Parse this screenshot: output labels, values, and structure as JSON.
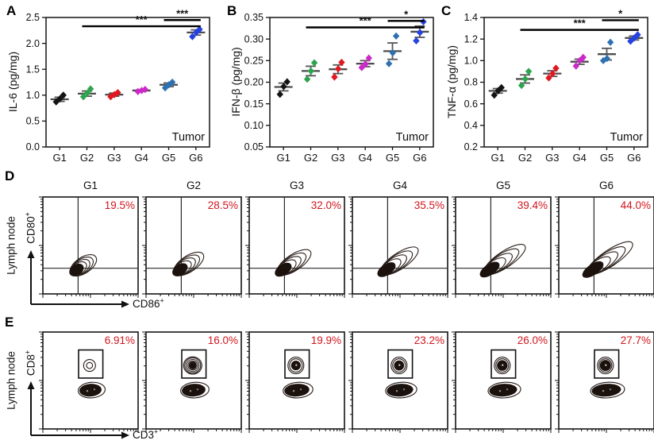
{
  "colors": {
    "percentage_red": "#d1151c",
    "sig_bar": "#000000",
    "mean_line": "#565656",
    "frame": "#141414"
  },
  "chart_data": [
    {
      "type": "scatter",
      "panel_letter": "A",
      "ylabel": "IL-6 (pg/mg)",
      "annotation": "Tumor",
      "categories": [
        "G1",
        "G2",
        "G3",
        "G4",
        "G5",
        "G6"
      ],
      "ylim": [
        0,
        2.5
      ],
      "yticks": [
        "0.0",
        "0.5",
        "1.0",
        "1.5",
        "2.0",
        "2.5"
      ],
      "series": [
        {
          "name": "G1",
          "color": "#141414",
          "points": [
            0.87,
            0.93,
            1.0
          ],
          "mean": 0.92,
          "sem": 0.04
        },
        {
          "name": "G2",
          "color": "#2ca44e",
          "points": [
            0.97,
            1.04,
            1.12
          ],
          "mean": 1.03,
          "sem": 0.05
        },
        {
          "name": "G3",
          "color": "#e0181f",
          "points": [
            0.97,
            1.01,
            1.05
          ],
          "mean": 1.01,
          "sem": 0.03
        },
        {
          "name": "G4",
          "color": "#cc29c9",
          "points": [
            1.07,
            1.09,
            1.11
          ],
          "mean": 1.09,
          "sem": 0.015
        },
        {
          "name": "G5",
          "color": "#2e71b3",
          "points": [
            1.14,
            1.2,
            1.25
          ],
          "mean": 1.2,
          "sem": 0.035
        },
        {
          "name": "G6",
          "color": "#2541e0",
          "points": [
            2.13,
            2.21,
            2.27
          ],
          "mean": 2.21,
          "sem": 0.05
        }
      ],
      "significance": [
        {
          "from": "G2",
          "to": "G6",
          "label": "***",
          "y": 2.33
        },
        {
          "from": "G5",
          "to": "G6",
          "label": "***",
          "y": 2.45
        }
      ]
    },
    {
      "type": "scatter",
      "panel_letter": "B",
      "ylabel": "IFN-β (pg/mg)",
      "annotation": "Tumor",
      "categories": [
        "G1",
        "G2",
        "G3",
        "G4",
        "G5",
        "G6"
      ],
      "ylim": [
        0.05,
        0.35
      ],
      "yticks": [
        "0.05",
        "0.10",
        "0.15",
        "0.20",
        "0.25",
        "0.30",
        "0.35"
      ],
      "series": [
        {
          "name": "G1",
          "color": "#141414",
          "points": [
            0.172,
            0.19,
            0.201
          ],
          "mean": 0.189,
          "sem": 0.009
        },
        {
          "name": "G2",
          "color": "#2ca44e",
          "points": [
            0.207,
            0.226,
            0.245
          ],
          "mean": 0.226,
          "sem": 0.011
        },
        {
          "name": "G3",
          "color": "#e0181f",
          "points": [
            0.212,
            0.231,
            0.246
          ],
          "mean": 0.23,
          "sem": 0.01
        },
        {
          "name": "G4",
          "color": "#cc29c9",
          "points": [
            0.234,
            0.242,
            0.256
          ],
          "mean": 0.243,
          "sem": 0.007
        },
        {
          "name": "G5",
          "color": "#2e71b3",
          "points": [
            0.243,
            0.268,
            0.307
          ],
          "mean": 0.272,
          "sem": 0.019
        },
        {
          "name": "G6",
          "color": "#2541e0",
          "points": [
            0.296,
            0.315,
            0.34
          ],
          "mean": 0.317,
          "sem": 0.013
        }
      ],
      "significance": [
        {
          "from": "G2",
          "to": "G6",
          "label": "***",
          "y": 0.327
        },
        {
          "from": "G5",
          "to": "G6",
          "label": "*",
          "y": 0.342
        }
      ]
    },
    {
      "type": "scatter",
      "panel_letter": "C",
      "ylabel": "TNF-α (pg/mg)",
      "annotation": "Tumor",
      "categories": [
        "G1",
        "G2",
        "G3",
        "G4",
        "G5",
        "G6"
      ],
      "ylim": [
        0.2,
        1.4
      ],
      "yticks": [
        "0.2",
        "0.4",
        "0.6",
        "0.8",
        "1.0",
        "1.2",
        "1.4"
      ],
      "series": [
        {
          "name": "G1",
          "color": "#141414",
          "points": [
            0.68,
            0.72,
            0.75
          ],
          "mean": 0.72,
          "sem": 0.021
        },
        {
          "name": "G2",
          "color": "#2ca44e",
          "points": [
            0.77,
            0.83,
            0.9
          ],
          "mean": 0.83,
          "sem": 0.038
        },
        {
          "name": "G3",
          "color": "#e0181f",
          "points": [
            0.84,
            0.88,
            0.93
          ],
          "mean": 0.88,
          "sem": 0.026
        },
        {
          "name": "G4",
          "color": "#cc29c9",
          "points": [
            0.95,
            1.0,
            1.03
          ],
          "mean": 0.99,
          "sem": 0.024
        },
        {
          "name": "G5",
          "color": "#2e71b3",
          "points": [
            1.0,
            1.02,
            1.17
          ],
          "mean": 1.06,
          "sem": 0.054
        },
        {
          "name": "G6",
          "color": "#2541e0",
          "points": [
            1.18,
            1.21,
            1.24
          ],
          "mean": 1.21,
          "sem": 0.018
        }
      ],
      "significance": [
        {
          "from": "G2",
          "to": "G6",
          "label": "***",
          "y": 1.285
        },
        {
          "from": "G5",
          "to": "G6",
          "label": "*",
          "y": 1.375
        }
      ]
    }
  ],
  "flow_rows": [
    {
      "panel_letter": "D",
      "tissue_label": "Lymph node",
      "y_axis_label": "CD80",
      "y_axis_sup": "+",
      "x_axis_label": "CD86",
      "x_axis_sup": "+",
      "plots": [
        {
          "title": "G1",
          "percentage": "19.5%"
        },
        {
          "title": "G2",
          "percentage": "28.5%"
        },
        {
          "title": "G3",
          "percentage": "32.0%"
        },
        {
          "title": "G4",
          "percentage": "35.5%"
        },
        {
          "title": "G5",
          "percentage": "39.4%"
        },
        {
          "title": "G6",
          "percentage": "44.0%"
        }
      ]
    },
    {
      "panel_letter": "E",
      "tissue_label": "Lymph node",
      "y_axis_label": "CD8",
      "y_axis_sup": "+",
      "x_axis_label": "CD3",
      "x_axis_sup": "+",
      "plots": [
        {
          "title": "",
          "percentage": "6.91%"
        },
        {
          "title": "",
          "percentage": "16.0%"
        },
        {
          "title": "",
          "percentage": "19.9%"
        },
        {
          "title": "",
          "percentage": "23.2%"
        },
        {
          "title": "",
          "percentage": "26.0%"
        },
        {
          "title": "",
          "percentage": "27.7%"
        }
      ]
    }
  ]
}
